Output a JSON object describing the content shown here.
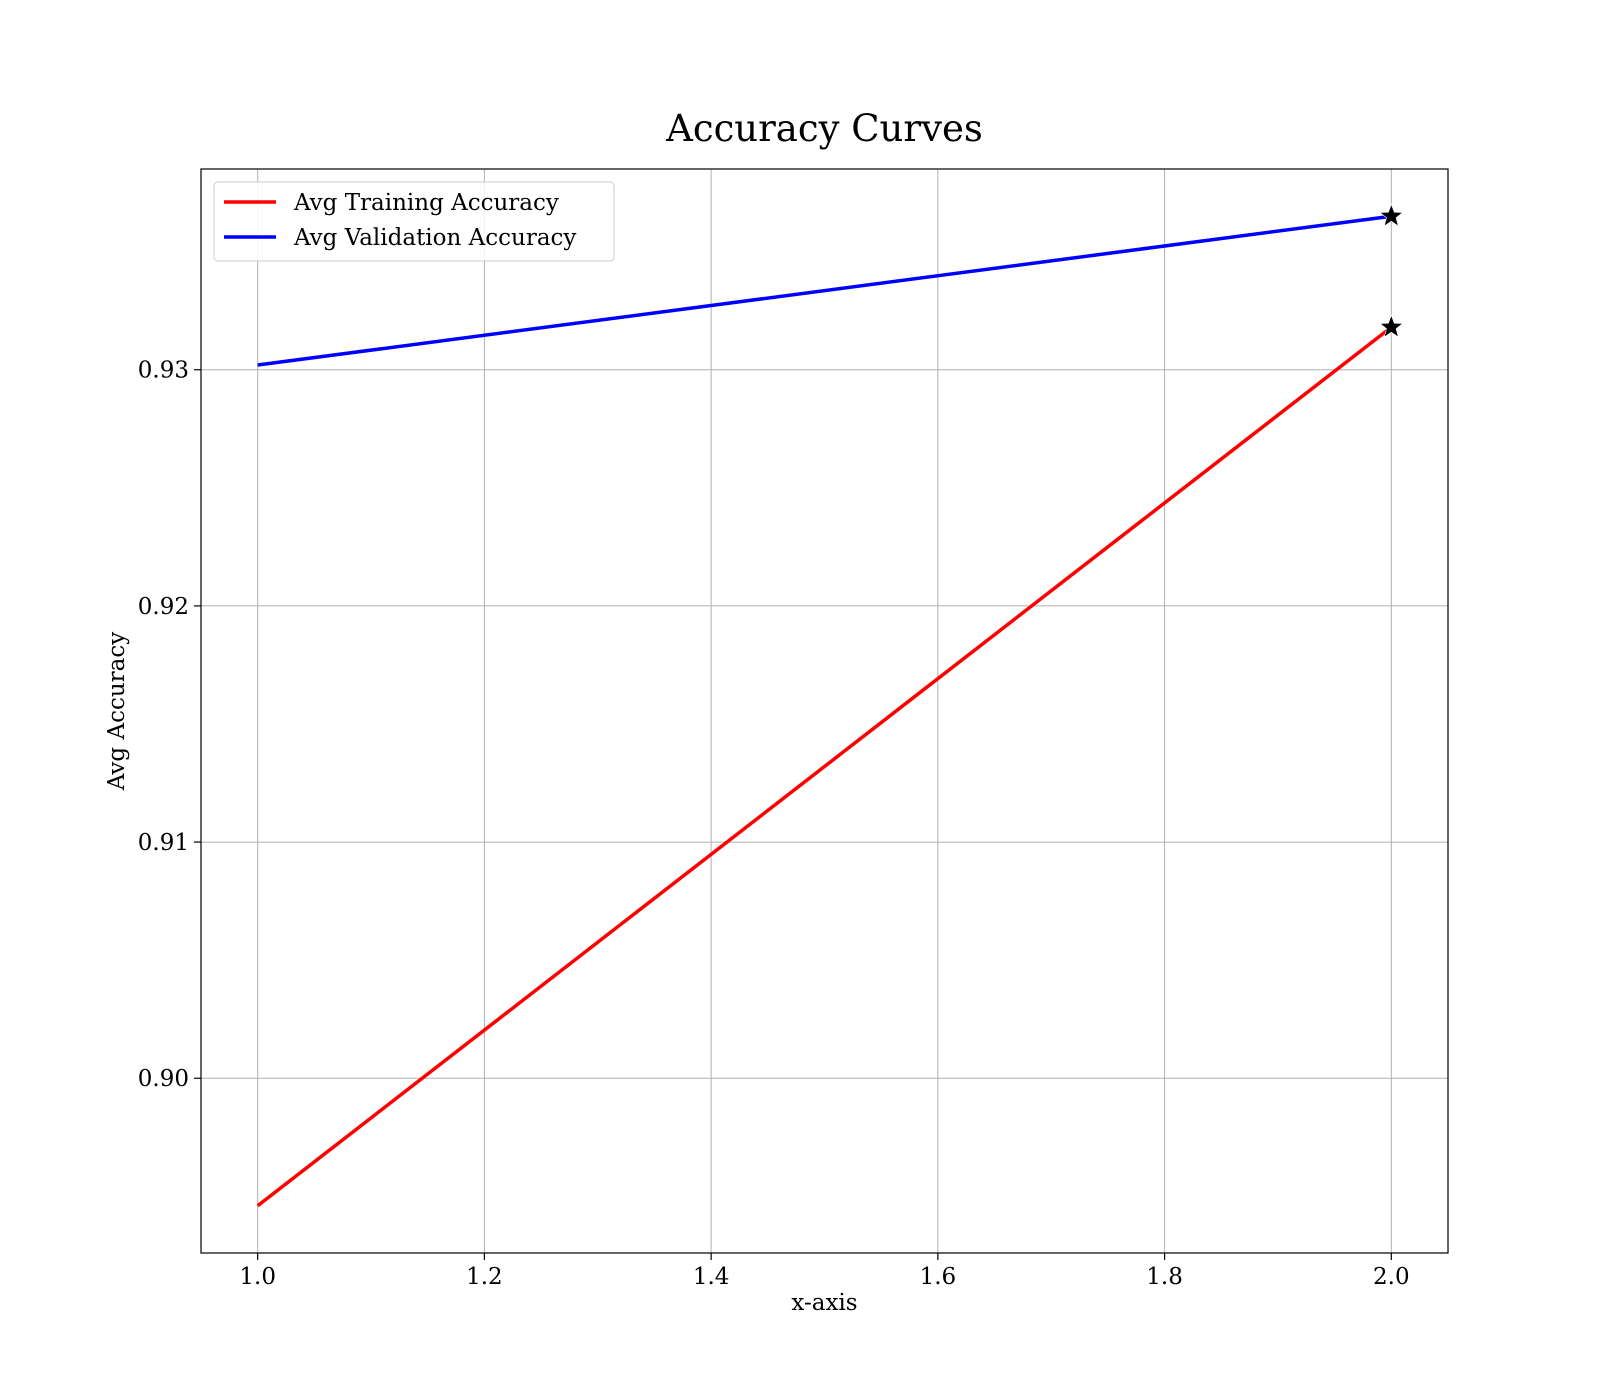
{
  "chart_data": {
    "type": "line",
    "title": "Accuracy Curves",
    "xlabel": "x-axis",
    "ylabel": "Avg Accuracy",
    "xlim": [
      0.95,
      2.05
    ],
    "ylim": [
      0.8926,
      0.9385
    ],
    "xticks": [
      1.0,
      1.2,
      1.4,
      1.6,
      1.8,
      2.0
    ],
    "xtick_labels": [
      "1.0",
      "1.2",
      "1.4",
      "1.6",
      "1.8",
      "2.0"
    ],
    "yticks": [
      0.9,
      0.91,
      0.92,
      0.93
    ],
    "ytick_labels": [
      "0.90",
      "0.91",
      "0.92",
      "0.93"
    ],
    "grid": true,
    "legend_position": "upper-left",
    "x": [
      1.0,
      2.0
    ],
    "series": [
      {
        "name": "Avg Training Accuracy",
        "values": [
          0.8946,
          0.9318
        ],
        "color": "#ff0000"
      },
      {
        "name": "Avg Validation Accuracy",
        "values": [
          0.9302,
          0.9365
        ],
        "color": "#0000ff"
      }
    ],
    "markers": [
      {
        "series": "Avg Training Accuracy",
        "x": 2.0,
        "y": 0.9318,
        "shape": "star",
        "color": "#000000"
      },
      {
        "series": "Avg Validation Accuracy",
        "x": 2.0,
        "y": 0.9365,
        "shape": "star",
        "color": "#000000"
      }
    ]
  }
}
